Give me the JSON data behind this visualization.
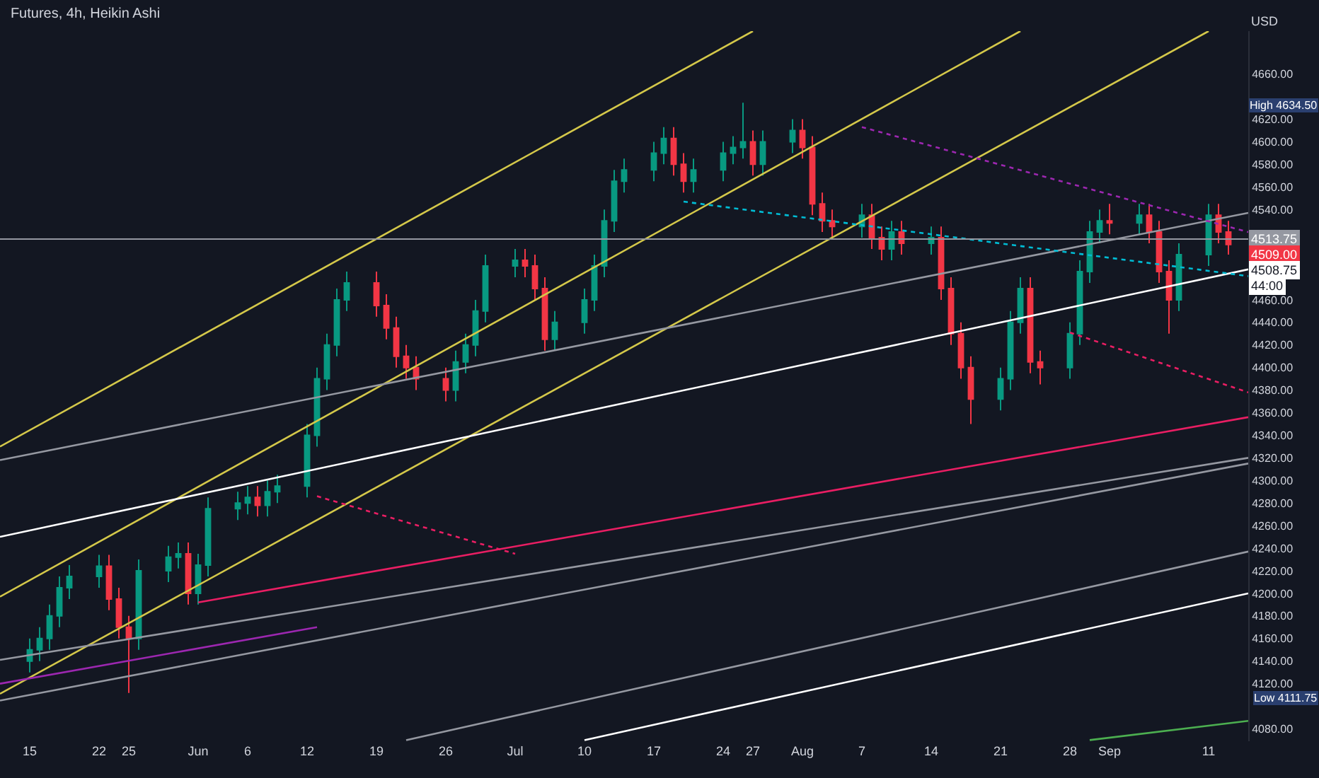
{
  "chart_data": {
    "type": "candlestick",
    "title": "Futures, 4h, Heikin Ashi",
    "x": [
      "--05-15",
      "--05-16",
      "--05-17",
      "--05-18",
      "--05-19",
      "--05-22",
      "--05-23",
      "--05-24",
      "--05-25",
      "--05-26",
      "--05-29",
      "--05-30",
      "--05-31",
      "--06-01",
      "--06-02",
      "--06-05",
      "--06-06",
      "--06-07",
      "--06-08",
      "--06-09",
      "--06-12",
      "--06-13",
      "--06-14",
      "--06-15",
      "--06-16",
      "--06-19",
      "--06-20",
      "--06-21",
      "--06-22",
      "--06-23",
      "--06-26",
      "--06-27",
      "--06-28",
      "--06-29",
      "--06-30",
      "--07-03",
      "--07-04",
      "--07-05",
      "--07-06",
      "--07-07",
      "--07-10",
      "--07-11",
      "--07-12",
      "--07-13",
      "--07-14",
      "--07-17",
      "--07-18",
      "--07-19",
      "--07-20",
      "--07-21",
      "--07-24",
      "--07-25",
      "--07-26",
      "--07-27",
      "--07-28",
      "--07-31",
      "--08-01",
      "--08-02",
      "--08-03",
      "--08-04",
      "--08-07",
      "--08-08",
      "--08-09",
      "--08-10",
      "--08-11",
      "--08-14",
      "--08-15",
      "--08-16",
      "--08-17",
      "--08-18",
      "--08-21",
      "--08-22",
      "--08-23",
      "--08-24",
      "--08-25",
      "--08-28",
      "--08-29",
      "--08-30",
      "--08-31",
      "--09-01",
      "--09-04",
      "--09-05",
      "--09-06",
      "--09-07",
      "--09-08",
      "--09-11",
      "--09-12",
      "--09-13"
    ],
    "ohlc": [
      [
        4140,
        4160,
        4130,
        4150
      ],
      [
        4150,
        4170,
        4140,
        4160
      ],
      [
        4160,
        4190,
        4150,
        4180
      ],
      [
        4180,
        4215,
        4170,
        4205
      ],
      [
        4205,
        4225,
        4195,
        4215
      ],
      [
        4215,
        4234,
        4205,
        4224
      ],
      [
        4224,
        4234,
        4185,
        4195
      ],
      [
        4195,
        4205,
        4160,
        4170
      ],
      [
        4170,
        4180,
        4111.75,
        4160
      ],
      [
        4160,
        4230,
        4150,
        4220
      ],
      [
        4220,
        4242,
        4210,
        4232
      ],
      [
        4232,
        4245,
        4222,
        4235
      ],
      [
        4235,
        4245,
        4190,
        4200
      ],
      [
        4200,
        4235,
        4190,
        4225
      ],
      [
        4225,
        4285,
        4215,
        4275
      ],
      [
        4275,
        4290,
        4265,
        4280
      ],
      [
        4280,
        4295,
        4270,
        4285
      ],
      [
        4285,
        4295,
        4268,
        4278
      ],
      [
        4278,
        4300,
        4268,
        4290
      ],
      [
        4290,
        4305,
        4280,
        4295
      ],
      [
        4295,
        4350,
        4285,
        4340
      ],
      [
        4340,
        4400,
        4330,
        4390
      ],
      [
        4390,
        4430,
        4380,
        4420
      ],
      [
        4420,
        4470,
        4410,
        4460
      ],
      [
        4460,
        4485,
        4450,
        4475
      ],
      [
        4475,
        4485,
        4445,
        4455
      ],
      [
        4455,
        4465,
        4425,
        4435
      ],
      [
        4435,
        4445,
        4400,
        4410
      ],
      [
        4410,
        4420,
        4390,
        4400
      ],
      [
        4400,
        4410,
        4380,
        4390
      ],
      [
        4390,
        4400,
        4370,
        4380
      ],
      [
        4380,
        4415,
        4370,
        4405
      ],
      [
        4405,
        4430,
        4395,
        4420
      ],
      [
        4420,
        4460,
        4410,
        4450
      ],
      [
        4450,
        4500,
        4440,
        4490
      ],
      [
        4490,
        4505,
        4480,
        4495
      ],
      [
        4495,
        4505,
        4480,
        4490
      ],
      [
        4490,
        4500,
        4460,
        4470
      ],
      [
        4470,
        4480,
        4415,
        4425
      ],
      [
        4425,
        4450,
        4415,
        4440
      ],
      [
        4440,
        4470,
        4430,
        4460
      ],
      [
        4460,
        4500,
        4450,
        4490
      ],
      [
        4490,
        4540,
        4480,
        4530
      ],
      [
        4530,
        4575,
        4520,
        4565
      ],
      [
        4565,
        4585,
        4555,
        4575
      ],
      [
        4575,
        4600,
        4565,
        4590
      ],
      [
        4590,
        4613,
        4580,
        4603
      ],
      [
        4603,
        4613,
        4570,
        4580
      ],
      [
        4580,
        4590,
        4555,
        4565
      ],
      [
        4565,
        4585,
        4555,
        4575
      ],
      [
        4575,
        4600,
        4565,
        4590
      ],
      [
        4590,
        4605,
        4580,
        4595
      ],
      [
        4595,
        4634.5,
        4585,
        4600
      ],
      [
        4600,
        4610,
        4570,
        4580
      ],
      [
        4580,
        4610,
        4570,
        4600
      ],
      [
        4600,
        4620,
        4590,
        4610
      ],
      [
        4610,
        4620,
        4585,
        4595
      ],
      [
        4595,
        4605,
        4535,
        4545
      ],
      [
        4545,
        4555,
        4520,
        4530
      ],
      [
        4530,
        4540,
        4515,
        4525
      ],
      [
        4525,
        4545,
        4515,
        4535
      ],
      [
        4535,
        4545,
        4505,
        4515
      ],
      [
        4515,
        4525,
        4495,
        4505
      ],
      [
        4505,
        4530,
        4495,
        4520
      ],
      [
        4520,
        4530,
        4500,
        4510
      ],
      [
        4510,
        4525,
        4500,
        4515
      ],
      [
        4515,
        4525,
        4460,
        4470
      ],
      [
        4470,
        4480,
        4420,
        4430
      ],
      [
        4430,
        4440,
        4390,
        4400
      ],
      [
        4400,
        4410,
        4350,
        4372
      ],
      [
        4372,
        4400,
        4362,
        4390
      ],
      [
        4390,
        4450,
        4380,
        4440
      ],
      [
        4440,
        4480,
        4430,
        4470
      ],
      [
        4470,
        4480,
        4395,
        4405
      ],
      [
        4405,
        4415,
        4385,
        4400
      ],
      [
        4400,
        4440,
        4390,
        4430
      ],
      [
        4430,
        4495,
        4420,
        4485
      ],
      [
        4485,
        4530,
        4475,
        4520
      ],
      [
        4520,
        4540,
        4510,
        4530
      ],
      [
        4530,
        4545,
        4518,
        4528
      ],
      [
        4528,
        4545,
        4518,
        4535
      ],
      [
        4535,
        4545,
        4510,
        4520
      ],
      [
        4520,
        4530,
        4475,
        4485
      ],
      [
        4485,
        4495,
        4430,
        4460
      ],
      [
        4460,
        4510,
        4450,
        4500
      ],
      [
        4500,
        4545,
        4490,
        4535
      ],
      [
        4535,
        4545,
        4510,
        4520
      ],
      [
        4520,
        4530,
        4500,
        4509
      ]
    ],
    "colors": [
      "#089981",
      "#089981",
      "#089981",
      "#089981",
      "#089981",
      "#089981",
      "#f23645",
      "#f23645",
      "#f23645",
      "#089981",
      "#089981",
      "#089981",
      "#f23645",
      "#089981",
      "#089981",
      "#089981",
      "#089981",
      "#f23645",
      "#089981",
      "#089981",
      "#089981",
      "#089981",
      "#089981",
      "#089981",
      "#089981",
      "#f23645",
      "#f23645",
      "#f23645",
      "#f23645",
      "#f23645",
      "#f23645",
      "#089981",
      "#089981",
      "#089981",
      "#089981",
      "#089981",
      "#f23645",
      "#f23645",
      "#f23645",
      "#089981",
      "#089981",
      "#089981",
      "#089981",
      "#089981",
      "#089981",
      "#089981",
      "#089981",
      "#f23645",
      "#f23645",
      "#089981",
      "#089981",
      "#089981",
      "#089981",
      "#f23645",
      "#089981",
      "#089981",
      "#f23645",
      "#f23645",
      "#f23645",
      "#f23645",
      "#089981",
      "#f23645",
      "#f23645",
      "#089981",
      "#f23645",
      "#089981",
      "#f23645",
      "#f23645",
      "#f23645",
      "#f23645",
      "#089981",
      "#089981",
      "#089981",
      "#f23645",
      "#f23645",
      "#089981",
      "#089981",
      "#089981",
      "#089981",
      "#f23645",
      "#089981",
      "#f23645",
      "#f23645",
      "#f23645",
      "#089981",
      "#089981",
      "#f23645",
      "#f23645"
    ],
    "series": [
      {
        "type": "line",
        "color": "#d4c84a",
        "line_style": "solid",
        "x": [
          "--05-12",
          "--07-27"
        ],
        "values": [
          4330,
          4698
        ]
      },
      {
        "type": "line",
        "color": "#d4c84a",
        "line_style": "solid",
        "x": [
          "--05-12",
          "--08-23"
        ],
        "values": [
          4197,
          4698
        ]
      },
      {
        "type": "line",
        "color": "#d4c84a",
        "line_style": "solid",
        "x": [
          "--05-12",
          "--09-11"
        ],
        "values": [
          4111,
          4698
        ]
      },
      {
        "type": "line",
        "color": "#9598a1",
        "line_style": "solid",
        "x": [
          "--05-12",
          "--09-15"
        ],
        "values": [
          4318,
          4537
        ]
      },
      {
        "type": "line",
        "color": "#ffffff",
        "line_style": "solid",
        "x": [
          "--05-12",
          "--09-15"
        ],
        "values": [
          4250,
          4487
        ]
      },
      {
        "type": "line",
        "color": "#9598a1",
        "line_style": "solid",
        "x": [
          "--05-12",
          "--09-15"
        ],
        "values": [
          4141,
          4320
        ]
      },
      {
        "type": "line",
        "color": "#9598a1",
        "line_style": "solid",
        "x": [
          "--05-12",
          "--09-15"
        ],
        "values": [
          4105,
          4315
        ]
      },
      {
        "type": "line",
        "color": "#9598a1",
        "line_style": "solid",
        "x": [
          "--06-22",
          "--09-15"
        ],
        "values": [
          4070,
          4237
        ]
      },
      {
        "type": "line",
        "color": "#ffffff",
        "line_style": "solid",
        "x": [
          "--07-10",
          "--09-15"
        ],
        "values": [
          4070,
          4200
        ]
      },
      {
        "type": "line",
        "color": "#4caf50",
        "line_style": "solid",
        "x": [
          "--08-30",
          "--09-15"
        ],
        "values": [
          4070,
          4087
        ]
      },
      {
        "type": "line",
        "color": "#e91e63",
        "line_style": "solid",
        "x": [
          "--06-01",
          "--09-15"
        ],
        "values": [
          4192,
          4356
        ]
      },
      {
        "type": "line",
        "color": "#9c27b0",
        "line_style": "solid",
        "x": [
          "--05-12",
          "--06-13"
        ],
        "values": [
          4120,
          4170
        ]
      },
      {
        "type": "line",
        "color": "#e91e63",
        "line_style": "dotted",
        "x": [
          "--06-13",
          "--07-03"
        ],
        "values": [
          4286,
          4235
        ]
      },
      {
        "type": "line",
        "color": "#e91e63",
        "line_style": "dotted",
        "x": [
          "--08-28",
          "--09-15"
        ],
        "values": [
          4431,
          4378
        ]
      },
      {
        "type": "line",
        "color": "#9c27b0",
        "line_style": "dotted",
        "x": [
          "--08-07",
          "--09-15"
        ],
        "values": [
          4613,
          4520
        ]
      },
      {
        "type": "line",
        "color": "#00bcd4",
        "line_style": "dotted",
        "x": [
          "--07-20",
          "--09-15"
        ],
        "values": [
          4547,
          4481
        ]
      }
    ],
    "xlim": [
      "--05-12",
      "--09-15"
    ],
    "xticks": [
      {
        "value": "--05-15",
        "label": "15"
      },
      {
        "value": "--05-22",
        "label": "22"
      },
      {
        "value": "--05-25",
        "label": "25"
      },
      {
        "value": "--06-01",
        "label": "Jun"
      },
      {
        "value": "--06-06",
        "label": "6"
      },
      {
        "value": "--06-12",
        "label": "12"
      },
      {
        "value": "--06-19",
        "label": "19"
      },
      {
        "value": "--06-26",
        "label": "26"
      },
      {
        "value": "--07-03",
        "label": "Jul"
      },
      {
        "value": "--07-10",
        "label": "10"
      },
      {
        "value": "--07-17",
        "label": "17"
      },
      {
        "value": "--07-24",
        "label": "24"
      },
      {
        "value": "--07-27",
        "label": "27"
      },
      {
        "value": "--08-01",
        "label": "Aug"
      },
      {
        "value": "--08-07",
        "label": "7"
      },
      {
        "value": "--08-14",
        "label": "14"
      },
      {
        "value": "--08-21",
        "label": "21"
      },
      {
        "value": "--08-28",
        "label": "28"
      },
      {
        "value": "--09-01",
        "label": "Sep"
      },
      {
        "value": "--09-11",
        "label": "11"
      }
    ],
    "ylim": [
      4069,
      4698
    ],
    "yticks": [
      {
        "value": 4080,
        "label": "4080.00"
      },
      {
        "value": 4120,
        "label": "4120.00"
      },
      {
        "value": 4140,
        "label": "4140.00"
      },
      {
        "value": 4160,
        "label": "4160.00"
      },
      {
        "value": 4180,
        "label": "4180.00"
      },
      {
        "value": 4200,
        "label": "4200.00"
      },
      {
        "value": 4220,
        "label": "4220.00"
      },
      {
        "value": 4240,
        "label": "4240.00"
      },
      {
        "value": 4260,
        "label": "4260.00"
      },
      {
        "value": 4280,
        "label": "4280.00"
      },
      {
        "value": 4300,
        "label": "4300.00"
      },
      {
        "value": 4320,
        "label": "4320.00"
      },
      {
        "value": 4340,
        "label": "4340.00"
      },
      {
        "value": 4360,
        "label": "4360.00"
      },
      {
        "value": 4380,
        "label": "4380.00"
      },
      {
        "value": 4400,
        "label": "4400.00"
      },
      {
        "value": 4420,
        "label": "4420.00"
      },
      {
        "value": 4440,
        "label": "4440.00"
      },
      {
        "value": 4460,
        "label": "4460.00"
      },
      {
        "value": 4540,
        "label": "4540.00"
      },
      {
        "value": 4560,
        "label": "4560.00"
      },
      {
        "value": 4580,
        "label": "4580.00"
      },
      {
        "value": 4600,
        "label": "4600.00"
      },
      {
        "value": 4620,
        "label": "4620.00"
      },
      {
        "value": 4660,
        "label": "4660.00"
      }
    ],
    "ref_lines": [
      {
        "axis": "y",
        "value": 4513.75,
        "label": "4513.75",
        "color": "#9598a1"
      }
    ],
    "annotations": [
      "USD",
      "High 4634.50",
      "Low 4111.75",
      "4509.00",
      "4508.75",
      "44:00"
    ]
  }
}
